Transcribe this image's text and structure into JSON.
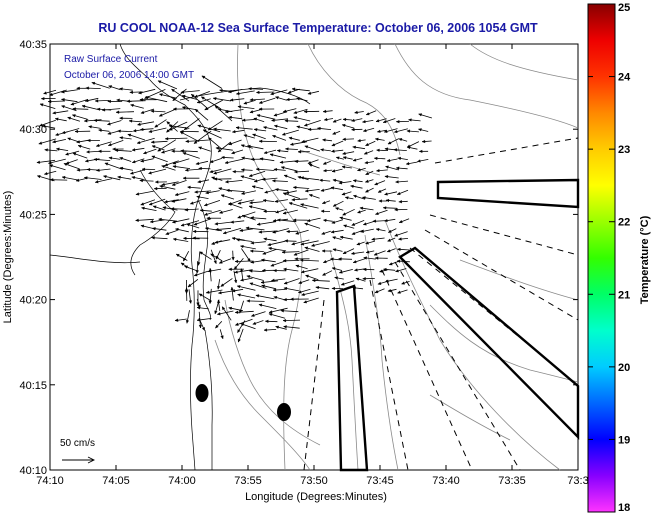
{
  "title": "RU COOL  NOAA-12  Sea Surface Temperature:  October 06, 2006 1054 GMT",
  "overlay": {
    "line1": "Raw Surface Current",
    "line2": "October 06, 2006 14:00 GMT"
  },
  "axes": {
    "xlabel": "Longitude (Degrees:Minutes)",
    "ylabel": "Latitude (Degrees:Minutes)",
    "xticks": [
      "74:10",
      "74:05",
      "74:00",
      "73:55",
      "73:50",
      "73:45",
      "73:40",
      "73:35",
      "73:3"
    ],
    "yticks": [
      "40:35",
      "40:30",
      "40:25",
      "40:20",
      "40:15",
      "40:10"
    ]
  },
  "scale": {
    "label": "50 cm/s"
  },
  "colorbar": {
    "label": "Temperature (°C)",
    "min": 18,
    "max": 25,
    "ticks": [
      "25",
      "24",
      "23",
      "22",
      "21",
      "20",
      "19",
      "18"
    ],
    "colors": [
      "#ff33ff",
      "#8800ff",
      "#0000ff",
      "#0066ff",
      "#00ccff",
      "#00ffcc",
      "#00ff66",
      "#33ff00",
      "#99ff00",
      "#ffff00",
      "#ffcc00",
      "#ff8800",
      "#ff3300",
      "#ee0000",
      "#880000"
    ]
  },
  "colors": {
    "title": "#1a1aa6",
    "overlay": "#1a1aa6",
    "contour": "#8a8a8a",
    "arrow": "#000000"
  }
}
